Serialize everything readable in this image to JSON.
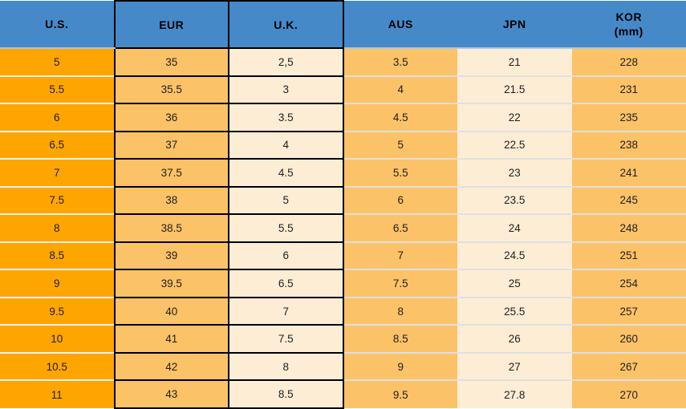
{
  "chart_data": {
    "type": "table",
    "columns": [
      {
        "label": "U.S."
      },
      {
        "label": "EUR"
      },
      {
        "label": "U.K."
      },
      {
        "label": "AUS"
      },
      {
        "label": "JPN"
      },
      {
        "label": "KOR",
        "sublabel": "(mm)"
      }
    ],
    "rows": [
      [
        "5",
        "35",
        "2,5",
        "3.5",
        "21",
        "228"
      ],
      [
        "5.5",
        "35.5",
        "3",
        "4",
        "21.5",
        "231"
      ],
      [
        "6",
        "36",
        "3.5",
        "4.5",
        "22",
        "235"
      ],
      [
        "6.5",
        "37",
        "4",
        "5",
        "22.5",
        "238"
      ],
      [
        "7",
        "37.5",
        "4.5",
        "5.5",
        "23",
        "241"
      ],
      [
        "7.5",
        "38",
        "5",
        "6",
        "23.5",
        "245"
      ],
      [
        "8",
        "38.5",
        "5.5",
        "6.5",
        "24",
        "248"
      ],
      [
        "8.5",
        "39",
        "6",
        "7",
        "24.5",
        "251"
      ],
      [
        "9",
        "39.5",
        "6.5",
        "7.5",
        "25",
        "254"
      ],
      [
        "9.5",
        "40",
        "7",
        "8",
        "25.5",
        "257"
      ],
      [
        "10",
        "41",
        "7.5",
        "8.5",
        "26",
        "260"
      ],
      [
        "10.5",
        "42",
        "8",
        "9",
        "27",
        "267"
      ],
      [
        "11",
        "43",
        "8.5",
        "9.5",
        "27.8",
        "270"
      ]
    ],
    "layout": {
      "grid": "left three columns black-bordered, right three columns borderless with light separators",
      "header_position": "top"
    }
  },
  "colors": {
    "header_bg": "#4689C8",
    "col_us_bg": "#FFA502",
    "col_orange_bg": "#FCC268",
    "col_cream_bg": "#FDEDD5",
    "border_black": "#000000",
    "header_separator": "#A6C9E9",
    "us_row_separator": "#F2F2F2",
    "right_row_separator": "#E0E0E0",
    "text": "#1F1F1F"
  }
}
